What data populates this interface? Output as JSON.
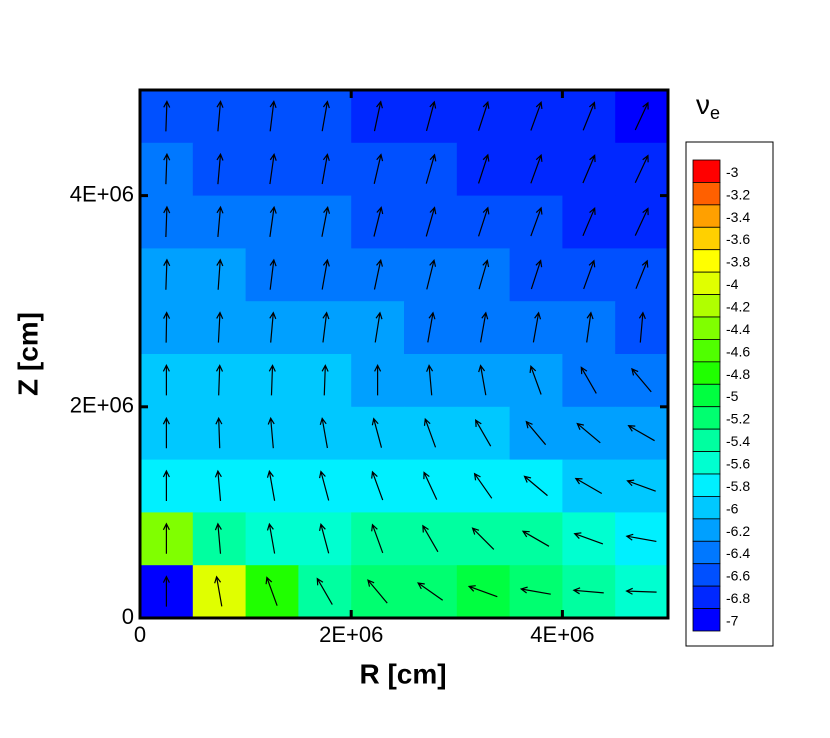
{
  "chart_data": {
    "type": "contour",
    "x_label": "R [cm]",
    "y_label": "Z [cm]",
    "legend_title": "ν",
    "legend_title_sub": "e",
    "xlim": [
      0,
      5000000
    ],
    "ylim": [
      0,
      5000000
    ],
    "xticks": [
      0,
      {
        "value": 2000000,
        "label": "2E+06"
      },
      {
        "value": 4000000,
        "label": "4E+06"
      }
    ],
    "yticks": [
      0,
      {
        "value": 2000000,
        "label": "2E+06"
      },
      {
        "value": 4000000,
        "label": "4E+06"
      }
    ],
    "r": [
      250000,
      750000,
      1250000,
      1750000,
      2250000,
      2750000,
      3250000,
      3750000,
      4250000,
      4750000
    ],
    "z": [
      4750000,
      4250000,
      3750000,
      3250000,
      2750000,
      2250000,
      1750000,
      1250000,
      750000,
      250000
    ],
    "values": [
      [
        -6.5,
        -6.5,
        -6.6,
        -6.6,
        -6.7,
        -6.7,
        -6.8,
        -6.8,
        -6.8,
        -6.9
      ],
      [
        -6.4,
        -6.5,
        -6.5,
        -6.6,
        -6.6,
        -6.6,
        -6.7,
        -6.7,
        -6.7,
        -6.8
      ],
      [
        -6.3,
        -6.3,
        -6.4,
        -6.4,
        -6.5,
        -6.5,
        -6.6,
        -6.6,
        -6.7,
        -6.7
      ],
      [
        -6.2,
        -6.2,
        -6.3,
        -6.3,
        -6.3,
        -6.4,
        -6.4,
        -6.5,
        -6.5,
        -6.6
      ],
      [
        -6.1,
        -6.1,
        -6.1,
        -6.2,
        -6.2,
        -6.3,
        -6.3,
        -6.4,
        -6.4,
        -6.5
      ],
      [
        -5.9,
        -6.0,
        -6.0,
        -6.0,
        -6.1,
        -6.1,
        -6.2,
        -6.2,
        -6.3,
        -6.3
      ],
      [
        -5.9,
        -5.9,
        -5.9,
        -5.9,
        -5.9,
        -5.9,
        -6.0,
        -6.1,
        -6.1,
        -6.2
      ],
      [
        -5.7,
        -5.8,
        -5.8,
        -5.8,
        -5.8,
        -5.7,
        -5.7,
        -5.8,
        -5.9,
        -6.0
      ],
      [
        -4.3,
        -5.3,
        -5.6,
        -5.5,
        -5.4,
        -5.3,
        -5.3,
        -5.4,
        -5.6,
        -5.8
      ],
      [
        -6.9,
        -4.0,
        -4.7,
        -5.3,
        -5.2,
        -5.1,
        -5.0,
        -5.1,
        -5.3,
        -5.6
      ]
    ],
    "vector_angles": [
      [
        88,
        85,
        83,
        80,
        78,
        75,
        72,
        70,
        68,
        65
      ],
      [
        88,
        85,
        82,
        80,
        77,
        74,
        72,
        70,
        67,
        65
      ],
      [
        88,
        85,
        82,
        79,
        76,
        74,
        72,
        70,
        67,
        65
      ],
      [
        88,
        86,
        83,
        80,
        78,
        76,
        74,
        72,
        70,
        68
      ],
      [
        89,
        87,
        85,
        83,
        81,
        80,
        80,
        80,
        82,
        85
      ],
      [
        90,
        88,
        88,
        88,
        90,
        95,
        100,
        110,
        120,
        130
      ],
      [
        90,
        92,
        95,
        100,
        105,
        110,
        120,
        130,
        140,
        150
      ],
      [
        90,
        95,
        100,
        105,
        110,
        115,
        125,
        140,
        150,
        160
      ],
      [
        90,
        95,
        100,
        105,
        110,
        120,
        135,
        150,
        160,
        170
      ],
      [
        90,
        100,
        110,
        120,
        130,
        145,
        160,
        170,
        175,
        178
      ]
    ],
    "levels": [
      -3,
      -3.2,
      -3.4,
      -3.6,
      -3.8,
      -4,
      -4.2,
      -4.4,
      -4.6,
      -4.8,
      -5,
      -5.2,
      -5.4,
      -5.6,
      -5.8,
      -6,
      -6.2,
      -6.4,
      -6.6,
      -6.8,
      -7
    ],
    "level_colors": [
      "#ff0000",
      "#ff6000",
      "#ffa000",
      "#ffd000",
      "#ffff00",
      "#e0ff00",
      "#b0ff00",
      "#80ff00",
      "#50ff00",
      "#20ff00",
      "#00ff40",
      "#00ff70",
      "#00ffa0",
      "#00ffd0",
      "#00f0ff",
      "#00c8ff",
      "#00a0ff",
      "#0078ff",
      "#0050ff",
      "#0028ff",
      "#0000ff"
    ]
  }
}
